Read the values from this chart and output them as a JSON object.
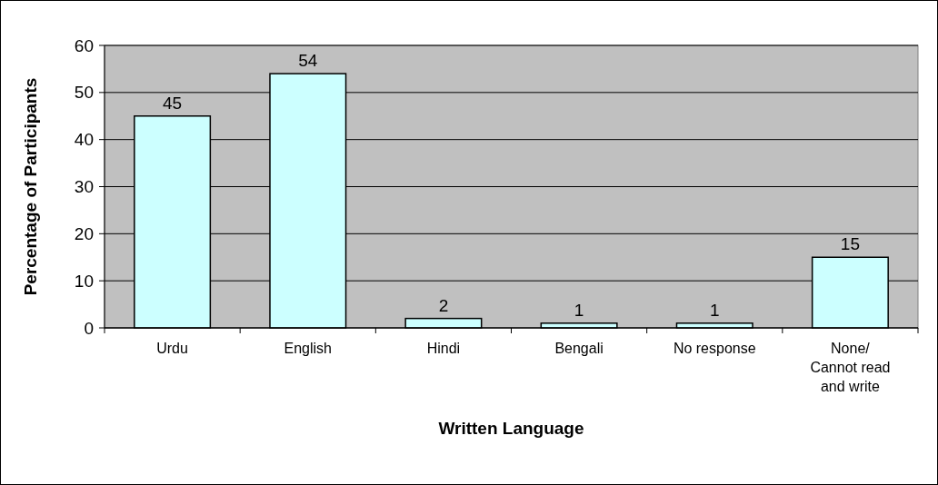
{
  "chart_data": {
    "type": "bar",
    "xlabel": "Written Language",
    "ylabel": "Percentage of Participants",
    "categories": [
      "Urdu",
      "English",
      "Hindi",
      "Bengali",
      "No response",
      "None/ Cannot read and write"
    ],
    "values": [
      45,
      54,
      2,
      1,
      1,
      15
    ],
    "color": "#ccffff",
    "ylim": [
      0,
      60
    ],
    "yticks": [
      0,
      10,
      20,
      30,
      40,
      50,
      60
    ],
    "grid": "y",
    "data_labels": true
  }
}
